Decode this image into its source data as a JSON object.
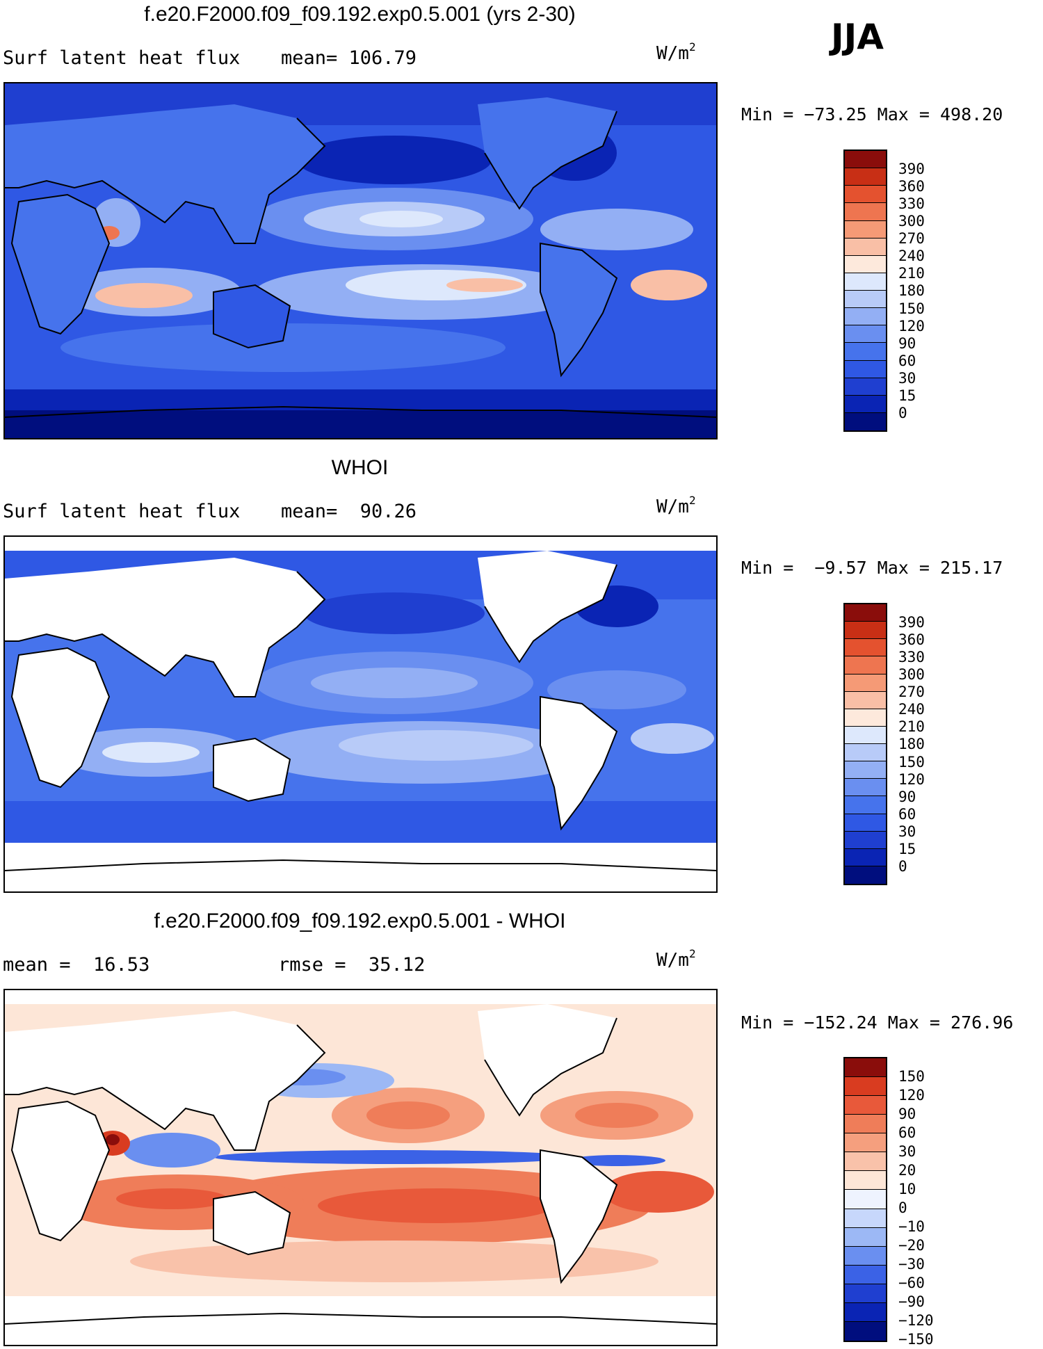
{
  "season": "JJA",
  "colors": {
    "seq": [
      "#000e7e",
      "#0a24b4",
      "#1f3fd0",
      "#2f58e4",
      "#4673ec",
      "#6a8ff0",
      "#93aff4",
      "#b8cbf8",
      "#dde8fc",
      "#fde9dc",
      "#f9bfa6",
      "#f59a76",
      "#ee7550",
      "#e4522f",
      "#c82f15",
      "#8a0d0b"
    ],
    "diff": [
      "#000e7e",
      "#0a24b4",
      "#1f3fd0",
      "#3b62e6",
      "#6a8ff0",
      "#9cb8f5",
      "#c7d7fb",
      "#eef3fe",
      "#fde6d7",
      "#f9c2aa",
      "#f59f7e",
      "#ef7d59",
      "#e8593a",
      "#d93c20",
      "#8a0d0b"
    ],
    "land": "#ffffff",
    "coast": "#000000"
  },
  "panels": [
    {
      "title": "f.e20.F2000.f09_f09.192.exp0.5.001 (yrs 2-30)",
      "left_label": "Surf latent heat flux",
      "center_label": "mean= 106.79",
      "units": "W/m",
      "units_exp": "2",
      "minmax": "Min = −73.25 Max = 498.20",
      "colorbar_ticks": [
        "390",
        "360",
        "330",
        "300",
        "270",
        "240",
        "210",
        "180",
        "150",
        "120",
        "90",
        "60",
        "30",
        "15",
        "0"
      ]
    },
    {
      "title": "WHOI",
      "left_label": "Surf latent heat flux",
      "center_label": "mean=  90.26",
      "units": "W/m",
      "units_exp": "2",
      "minmax": "Min =  −9.57 Max = 215.17",
      "colorbar_ticks": [
        "390",
        "360",
        "330",
        "300",
        "270",
        "240",
        "210",
        "180",
        "150",
        "120",
        "90",
        "60",
        "30",
        "15",
        "0"
      ]
    },
    {
      "title": "f.e20.F2000.f09_f09.192.exp0.5.001 - WHOI",
      "left_label": "mean =  16.53",
      "center_label": "rmse =  35.12",
      "units": "W/m",
      "units_exp": "2",
      "minmax": "Min = −152.24 Max = 276.96",
      "colorbar_ticks": [
        "150",
        "120",
        "90",
        "60",
        "30",
        "20",
        "10",
        "0",
        "−10",
        "−20",
        "−30",
        "−60",
        "−90",
        "−120",
        "−150"
      ]
    }
  ]
}
